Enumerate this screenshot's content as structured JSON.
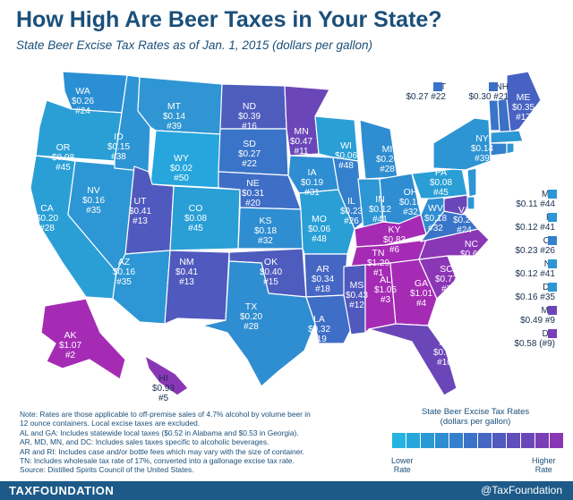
{
  "header": {
    "title": "How High Are Beer Taxes in Your State?",
    "subtitle": "State Beer Excise Tax Rates as of Jan. 1, 2015 (dollars per gallon)"
  },
  "colors": {
    "low": "#2a9fd6",
    "mid": "#3a74c8",
    "high": "#7b46b8",
    "top": "#a52bb5",
    "border": "#ffffff",
    "brand": "#1d5a88"
  },
  "states": [
    {
      "abbr": "WA",
      "rate": "$0.26",
      "rank": "#24"
    },
    {
      "abbr": "OR",
      "rate": "$0.08",
      "rank": "#45"
    },
    {
      "abbr": "CA",
      "rate": "$0.20",
      "rank": "#28"
    },
    {
      "abbr": "NV",
      "rate": "$0.16",
      "rank": "#35"
    },
    {
      "abbr": "ID",
      "rate": "$0.15",
      "rank": "#38"
    },
    {
      "abbr": "MT",
      "rate": "$0.14",
      "rank": "#39"
    },
    {
      "abbr": "WY",
      "rate": "$0.02",
      "rank": "#50"
    },
    {
      "abbr": "UT",
      "rate": "$0.41",
      "rank": "#13"
    },
    {
      "abbr": "AZ",
      "rate": "$0.16",
      "rank": "#35"
    },
    {
      "abbr": "CO",
      "rate": "$0.08",
      "rank": "#45"
    },
    {
      "abbr": "NM",
      "rate": "$0.41",
      "rank": "#13"
    },
    {
      "abbr": "ND",
      "rate": "$0.39",
      "rank": "#16"
    },
    {
      "abbr": "SD",
      "rate": "$0.27",
      "rank": "#22"
    },
    {
      "abbr": "NE",
      "rate": "$0.31",
      "rank": "#20"
    },
    {
      "abbr": "KS",
      "rate": "$0.18",
      "rank": "#32"
    },
    {
      "abbr": "OK",
      "rate": "$0.40",
      "rank": "#15"
    },
    {
      "abbr": "TX",
      "rate": "$0.20",
      "rank": "#28"
    },
    {
      "abbr": "MN",
      "rate": "$0.47",
      "rank": "#11"
    },
    {
      "abbr": "IA",
      "rate": "$0.19",
      "rank": "#31"
    },
    {
      "abbr": "MO",
      "rate": "$0.06",
      "rank": "#48"
    },
    {
      "abbr": "AR",
      "rate": "$0.34",
      "rank": "#18"
    },
    {
      "abbr": "LA",
      "rate": "$0.32",
      "rank": "#19"
    },
    {
      "abbr": "WI",
      "rate": "$0.06",
      "rank": "#48"
    },
    {
      "abbr": "IL",
      "rate": "$0.23",
      "rank": "#26"
    },
    {
      "abbr": "MI",
      "rate": "$0.20",
      "rank": "#28"
    },
    {
      "abbr": "IN",
      "rate": "$0.12",
      "rank": "#41"
    },
    {
      "abbr": "OH",
      "rate": "$0.18",
      "rank": "#32"
    },
    {
      "abbr": "KY",
      "rate": "$0.83",
      "rank": "#6"
    },
    {
      "abbr": "TN",
      "rate": "$1.29",
      "rank": "#1"
    },
    {
      "abbr": "MS",
      "rate": "$0.43",
      "rank": "#12"
    },
    {
      "abbr": "AL",
      "rate": "$1.05",
      "rank": "#3"
    },
    {
      "abbr": "GA",
      "rate": "$1.01",
      "rank": "#4"
    },
    {
      "abbr": "FL",
      "rate": "$0.48",
      "rank": "#10"
    },
    {
      "abbr": "SC",
      "rate": "$0.77",
      "rank": "#7"
    },
    {
      "abbr": "NC",
      "rate": "$0.62",
      "rank": "#8"
    },
    {
      "abbr": "VA",
      "rate": "$0.26",
      "rank": "#24"
    },
    {
      "abbr": "WV",
      "rate": "$0.18",
      "rank": "#32"
    },
    {
      "abbr": "PA",
      "rate": "$0.08",
      "rank": "#45"
    },
    {
      "abbr": "NY",
      "rate": "$0.14",
      "rank": "#39"
    },
    {
      "abbr": "ME",
      "rate": "$0.35",
      "rank": "#17"
    },
    {
      "abbr": "AK",
      "rate": "$1.07",
      "rank": "#2"
    },
    {
      "abbr": "HI",
      "rate": "$0.93",
      "rank": "#5"
    }
  ],
  "side_states": [
    {
      "abbr": "VT",
      "value": "$0.27 #22"
    },
    {
      "abbr": "NH",
      "value": "$0.30 #21"
    },
    {
      "abbr": "MA",
      "value": "$0.11 #44"
    },
    {
      "abbr": "RI",
      "value": "$0.12 #41"
    },
    {
      "abbr": "CT",
      "value": "$0.23 #26"
    },
    {
      "abbr": "NJ",
      "value": "$0.12 #41"
    },
    {
      "abbr": "DE",
      "value": "$0.16 #35"
    },
    {
      "abbr": "MD",
      "value": "$0.49 #9"
    },
    {
      "abbr": "DC",
      "value": "$0.58 (#9)"
    }
  ],
  "notes": [
    "Note: Rates are those applicable to off-premise sales of 4.7% alcohol by volume beer in",
    "12 ounce containers. Local excise taxes are excluded.",
    "AL and GA: Includes statewide local taxes ($0.52 in Alabama and $0.53 in Georgia).",
    "AR, MD, MN, and DC: Includes sales taxes specific to alcoholic beverages.",
    "AR and RI: Includes case and/or bottle fees which may vary with the size of container.",
    "TN: Includes wholesale tax rate of 17%, converted into a gallonage excise tax rate.",
    "Source: Distilled Spirits Council of the United States."
  ],
  "legend": {
    "title_line1": "State Beer Excise Tax Rates",
    "title_line2": "(dollars per gallon)",
    "lower_line1": "Lower",
    "lower_line2": "Rate",
    "higher_line1": "Higher",
    "higher_line2": "Rate",
    "swatches": [
      "#26b3e0",
      "#25a7dc",
      "#2a9ad6",
      "#2f8dd1",
      "#3580cc",
      "#3b73c8",
      "#4566c3",
      "#5059bd",
      "#5e4fba",
      "#6b46b8",
      "#7a3fb7",
      "#8a37b6"
    ]
  },
  "footer": {
    "brand": "TAXFOUNDATION",
    "handle": "@TaxFoundation"
  }
}
